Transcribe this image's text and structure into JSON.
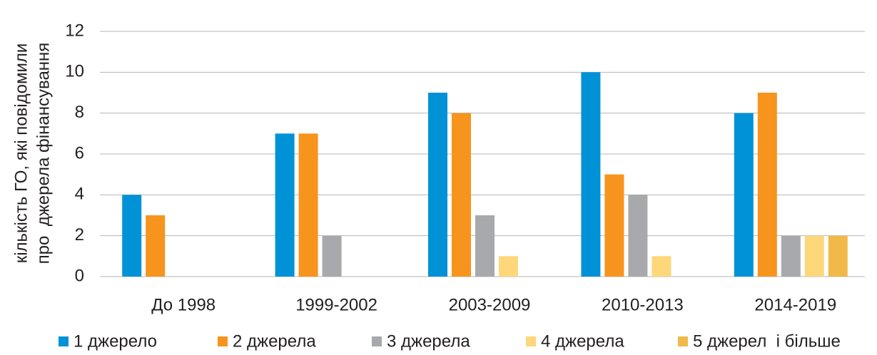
{
  "chart_data": {
    "type": "bar",
    "ylabel": [
      "кількість ГО, які повідомили",
      "про  джерела фінансування"
    ],
    "categories": [
      "До 1998",
      "1999-2002",
      "2003-2009",
      "2010-2013",
      "2014-2019"
    ],
    "series": [
      {
        "name": "1 джерело",
        "color": "#0092d6",
        "values": [
          4,
          7,
          9,
          10,
          8
        ]
      },
      {
        "name": "2 джерела",
        "color": "#f7941d",
        "values": [
          3,
          7,
          8,
          5,
          9
        ]
      },
      {
        "name": "3 джерела",
        "color": "#a7a9ac",
        "values": [
          0,
          2,
          3,
          4,
          2
        ]
      },
      {
        "name": "4 джерела",
        "color": "#fdd77a",
        "values": [
          0,
          0,
          1,
          1,
          2
        ]
      },
      {
        "name": "5 джерел  і більше",
        "color": "#f0b94a",
        "values": [
          0,
          0,
          0,
          0,
          2
        ]
      }
    ],
    "ylim": [
      0,
      12
    ],
    "yticks": [
      0,
      2,
      4,
      6,
      8,
      10,
      12
    ],
    "grid": true,
    "legend": "bottom"
  }
}
